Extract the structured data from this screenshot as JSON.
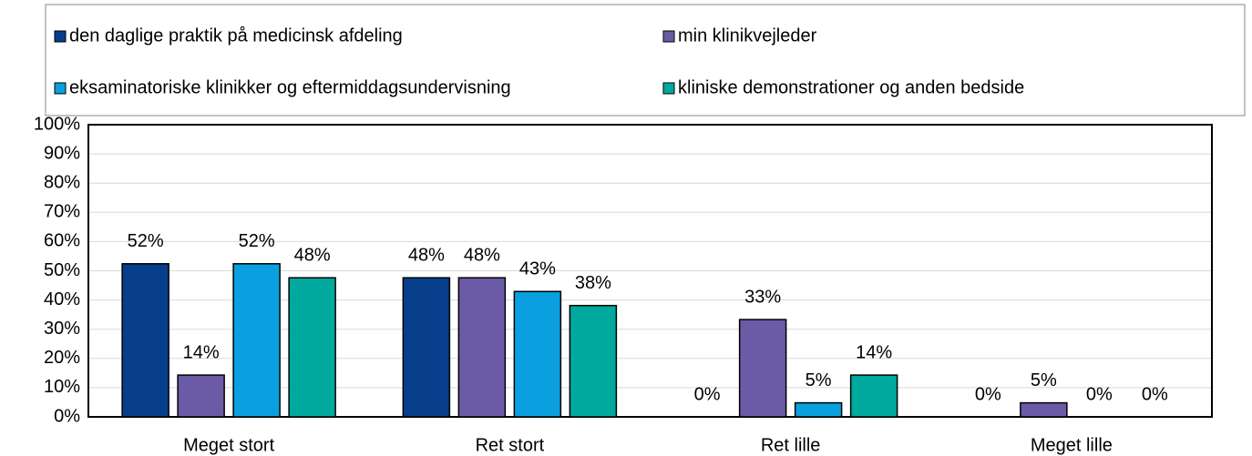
{
  "chart_data": {
    "type": "bar",
    "categories": [
      "Meget stort",
      "Ret stort",
      "Ret lille",
      "Meget lille"
    ],
    "series": [
      {
        "name": "den daglige praktik på medicinsk afdeling",
        "color": "#073f8c",
        "values": [
          52.4,
          47.6,
          0,
          0
        ],
        "value_labels": [
          "52%",
          "48%",
          "0%",
          "0%"
        ]
      },
      {
        "name": "min klinikvejleder",
        "color": "#6b5ba6",
        "values": [
          14.3,
          47.6,
          33.3,
          4.8
        ],
        "value_labels": [
          "14%",
          "48%",
          "33%",
          "5%"
        ]
      },
      {
        "name": "eksaminatoriske klinikker og eftermiddagsundervisning",
        "color": "#0aa0e0",
        "values": [
          52.4,
          42.9,
          4.8,
          0
        ],
        "value_labels": [
          "52%",
          "43%",
          "5%",
          "0%"
        ]
      },
      {
        "name": "kliniske demonstrationer og anden bedside",
        "color": "#00a99d",
        "values": [
          47.6,
          38.1,
          14.3,
          0
        ],
        "value_labels": [
          "48%",
          "38%",
          "14%",
          "0%"
        ]
      }
    ],
    "ylim": [
      0,
      100
    ],
    "yticks": [
      {
        "value": 0,
        "label": "0%"
      },
      {
        "value": 10,
        "label": "10%"
      },
      {
        "value": 20,
        "label": "20%"
      },
      {
        "value": 30,
        "label": "30%"
      },
      {
        "value": 40,
        "label": "40%"
      },
      {
        "value": 50,
        "label": "50%"
      },
      {
        "value": 60,
        "label": "60%"
      },
      {
        "value": 70,
        "label": "70%"
      },
      {
        "value": 80,
        "label": "80%"
      },
      {
        "value": 90,
        "label": "90%"
      },
      {
        "value": 100,
        "label": "100%"
      }
    ],
    "grid": true,
    "legend": "top"
  }
}
